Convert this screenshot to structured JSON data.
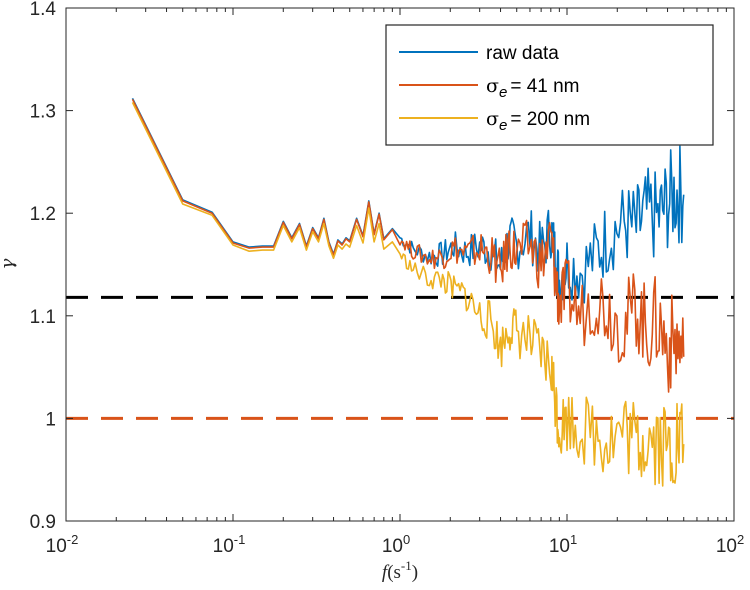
{
  "chart_data": {
    "type": "line",
    "xscale": "log",
    "xlim": [
      0.01,
      100
    ],
    "ylim": [
      0.9,
      1.4
    ],
    "xlabel": {
      "italic": "f",
      "main": "(s",
      "sup": "-1",
      "close": ")"
    },
    "ylabel": "γ",
    "xticks": [
      {
        "value": 0.01,
        "base": "10",
        "exp": "-2"
      },
      {
        "value": 0.1,
        "base": "10",
        "exp": "-1"
      },
      {
        "value": 1,
        "base": "10",
        "exp": "0"
      },
      {
        "value": 10,
        "base": "10",
        "exp": "1"
      },
      {
        "value": 100,
        "base": "10",
        "exp": "2"
      }
    ],
    "yticks": [
      {
        "value": 0.9,
        "label": "0.9"
      },
      {
        "value": 1.0,
        "label": "1"
      },
      {
        "value": 1.1,
        "label": "1.1"
      },
      {
        "value": 1.2,
        "label": "1.2"
      },
      {
        "value": 1.3,
        "label": "1.3"
      },
      {
        "value": 1.4,
        "label": "1.4"
      }
    ],
    "reference_lines": [
      {
        "y": 1.118,
        "color": "#000000",
        "style": "dashed"
      },
      {
        "y": 1.0,
        "color": "#D95319",
        "style": "dashed"
      }
    ],
    "legend": {
      "location": "top-right",
      "entries": [
        {
          "series": "raw data",
          "sym": "",
          "sub": "",
          "label": "raw data",
          "color": "#0072BD"
        },
        {
          "series": "sigma_e = 41 nm",
          "sym": "σ",
          "sub": "e",
          "label": "= 41 nm",
          "color": "#D95319"
        },
        {
          "series": "sigma_e = 200 nm",
          "sym": "σ",
          "sub": "e",
          "label": "= 200 nm",
          "color": "#EDB120"
        }
      ]
    },
    "series": [
      {
        "name": "raw data",
        "color": "#0072BD",
        "x": [
          0.025,
          0.05,
          0.075,
          0.1,
          0.125,
          0.15,
          0.175,
          0.2,
          0.225,
          0.25,
          0.275,
          0.3,
          0.325,
          0.35,
          0.375,
          0.4,
          0.425,
          0.45,
          0.475,
          0.5,
          0.55,
          0.6,
          0.65,
          0.7,
          0.75,
          0.8,
          0.9,
          1.0,
          1.2,
          1.5,
          1.8,
          2.1,
          2.5,
          3.0,
          3.5,
          4.0,
          4.5,
          5.0,
          6.0,
          7.0,
          8.0,
          8.5,
          9.0,
          10,
          12,
          15,
          18,
          22,
          26,
          30,
          35,
          40,
          45,
          50
        ],
        "y": [
          1.312,
          1.213,
          1.201,
          1.172,
          1.167,
          1.168,
          1.168,
          1.192,
          1.176,
          1.19,
          1.168,
          1.186,
          1.176,
          1.195,
          1.172,
          1.16,
          1.174,
          1.17,
          1.176,
          1.173,
          1.195,
          1.178,
          1.212,
          1.18,
          1.2,
          1.175,
          1.185,
          1.176,
          1.165,
          1.158,
          1.16,
          1.168,
          1.162,
          1.168,
          1.163,
          1.148,
          1.176,
          1.168,
          1.18,
          1.162,
          1.185,
          1.158,
          1.135,
          1.152,
          1.143,
          1.16,
          1.18,
          1.19,
          1.185,
          1.2,
          1.195,
          1.21,
          1.22,
          1.218
        ]
      },
      {
        "name": "sigma_e = 41 nm",
        "color": "#D95319",
        "x": [
          0.025,
          0.05,
          0.075,
          0.1,
          0.125,
          0.15,
          0.175,
          0.2,
          0.225,
          0.25,
          0.275,
          0.3,
          0.325,
          0.35,
          0.375,
          0.4,
          0.425,
          0.45,
          0.475,
          0.5,
          0.55,
          0.6,
          0.65,
          0.7,
          0.75,
          0.8,
          0.9,
          1.0,
          1.2,
          1.5,
          1.8,
          2.1,
          2.5,
          3.0,
          3.5,
          4.0,
          4.5,
          5.0,
          6.0,
          7.0,
          8.0,
          8.5,
          9.0,
          10,
          12,
          15,
          18,
          22,
          26,
          30,
          35,
          40,
          45,
          50
        ],
        "y": [
          1.311,
          1.212,
          1.2,
          1.171,
          1.166,
          1.167,
          1.167,
          1.191,
          1.175,
          1.189,
          1.167,
          1.185,
          1.175,
          1.194,
          1.171,
          1.159,
          1.173,
          1.169,
          1.175,
          1.172,
          1.194,
          1.177,
          1.211,
          1.179,
          1.199,
          1.174,
          1.184,
          1.175,
          1.163,
          1.156,
          1.158,
          1.166,
          1.16,
          1.165,
          1.16,
          1.142,
          1.17,
          1.16,
          1.17,
          1.15,
          1.175,
          1.14,
          1.11,
          1.125,
          1.1,
          1.12,
          1.105,
          1.09,
          1.11,
          1.085,
          1.095,
          1.07,
          1.075,
          1.06
        ]
      },
      {
        "name": "sigma_e = 200 nm",
        "color": "#EDB120",
        "x": [
          0.025,
          0.05,
          0.075,
          0.1,
          0.125,
          0.15,
          0.175,
          0.2,
          0.225,
          0.25,
          0.275,
          0.3,
          0.325,
          0.35,
          0.375,
          0.4,
          0.425,
          0.45,
          0.475,
          0.5,
          0.55,
          0.6,
          0.65,
          0.7,
          0.75,
          0.8,
          0.9,
          1.0,
          1.2,
          1.5,
          1.8,
          2.1,
          2.5,
          3.0,
          3.5,
          4.0,
          4.5,
          5.0,
          6.0,
          7.0,
          8.0,
          8.5,
          9.0,
          10,
          12,
          15,
          18,
          22,
          26,
          30,
          35,
          40,
          45,
          50
        ],
        "y": [
          1.308,
          1.209,
          1.198,
          1.169,
          1.163,
          1.164,
          1.164,
          1.188,
          1.172,
          1.186,
          1.164,
          1.182,
          1.172,
          1.19,
          1.168,
          1.156,
          1.169,
          1.165,
          1.17,
          1.167,
          1.188,
          1.171,
          1.205,
          1.172,
          1.19,
          1.165,
          1.172,
          1.16,
          1.145,
          1.136,
          1.135,
          1.125,
          1.12,
          1.1,
          1.095,
          1.068,
          1.09,
          1.085,
          1.075,
          1.06,
          1.05,
          1.02,
          0.99,
          1.0,
          0.99,
          0.985,
          0.98,
          0.99,
          0.975,
          0.985,
          0.98,
          0.97,
          0.98,
          0.975
        ]
      }
    ]
  }
}
